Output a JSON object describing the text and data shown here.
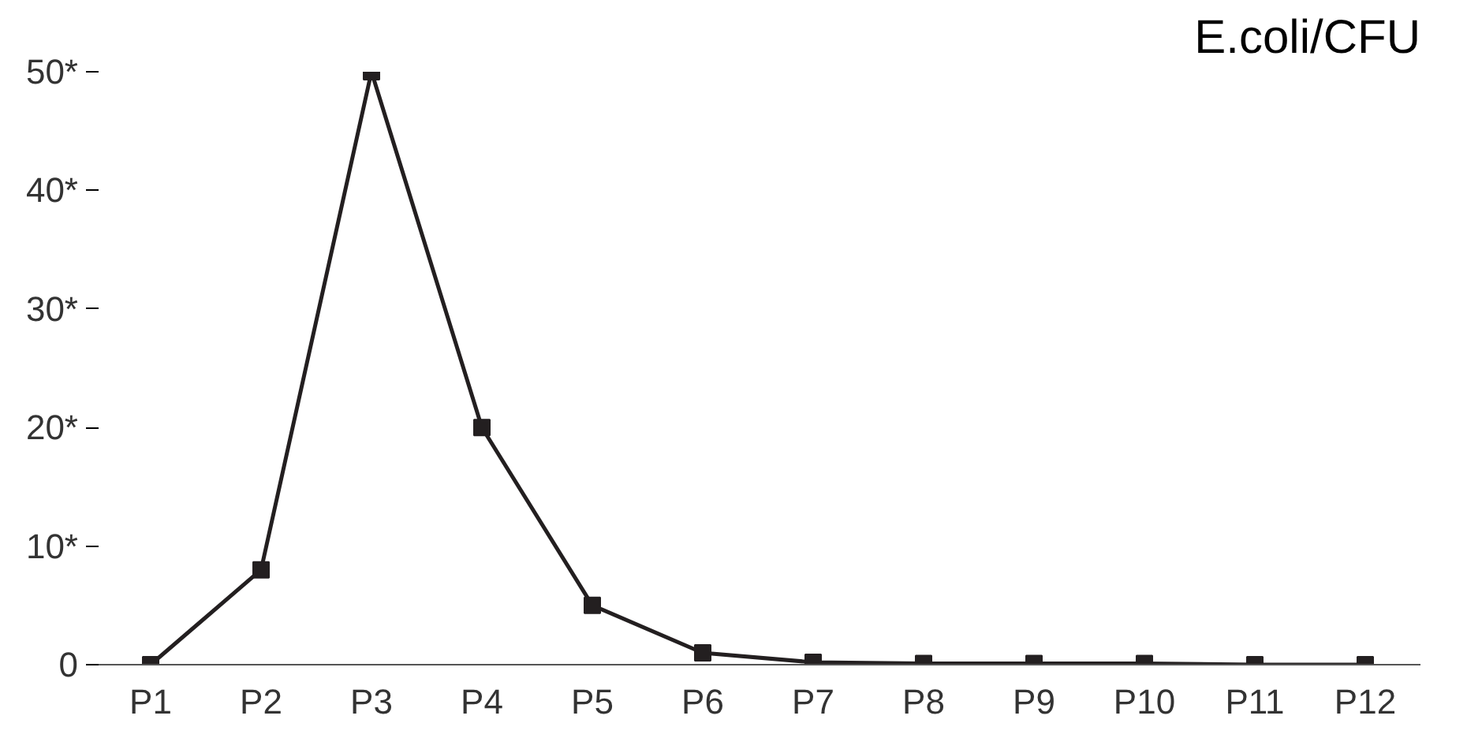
{
  "chart_data": {
    "type": "line",
    "title": "E.coli/CFU",
    "categories": [
      "P1",
      "P2",
      "P3",
      "P4",
      "P5",
      "P6",
      "P7",
      "P8",
      "P9",
      "P10",
      "P11",
      "P12"
    ],
    "series": [
      {
        "color": "#231f20",
        "values": [
          0,
          8,
          50,
          20,
          5,
          1,
          0.2,
          0.1,
          0.1,
          0.1,
          0,
          0
        ]
      }
    ],
    "ylim": [
      0,
      50
    ],
    "yticks": [
      0,
      {
        "value": 10,
        "label": "10*"
      },
      {
        "value": 20,
        "label": "20*"
      },
      {
        "value": 30,
        "label": "30*"
      },
      {
        "value": 40,
        "label": "40*"
      },
      {
        "value": 50,
        "label": "50*"
      }
    ],
    "marker": "square",
    "line_style": "solid"
  }
}
